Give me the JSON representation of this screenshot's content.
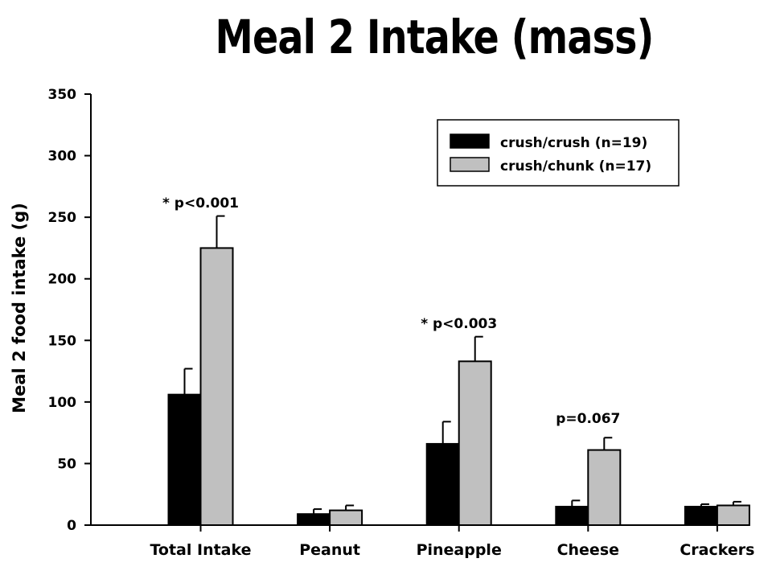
{
  "chart_data": {
    "type": "bar",
    "title": "Meal 2 Intake (mass)",
    "xlabel": "",
    "ylabel": "Meal 2 food intake (g)",
    "ylim": [
      0,
      350
    ],
    "yticks": [
      0,
      50,
      100,
      150,
      200,
      250,
      300,
      350
    ],
    "categories": [
      "Total Intake",
      "Peanut",
      "Pineapple",
      "Cheese",
      "Crackers"
    ],
    "series": [
      {
        "name": "crush/crush (n=19)",
        "color": "#000000",
        "values": [
          106,
          9,
          66,
          15,
          15
        ],
        "error": [
          21,
          4,
          18,
          5,
          2
        ]
      },
      {
        "name": "crush/chunk (n=17)",
        "color": "#c0c0c0",
        "values": [
          225,
          12,
          133,
          61,
          16
        ],
        "error": [
          26,
          4,
          20,
          10,
          3
        ]
      }
    ],
    "annotations": [
      {
        "text": "* p<0.001",
        "category": "Total Intake",
        "y": 258
      },
      {
        "text": "* p<0.003",
        "category": "Pineapple",
        "y": 160
      },
      {
        "text": "p=0.067",
        "category": "Cheese",
        "y": 83
      }
    ],
    "legend_position": "top-right",
    "grid": false
  }
}
